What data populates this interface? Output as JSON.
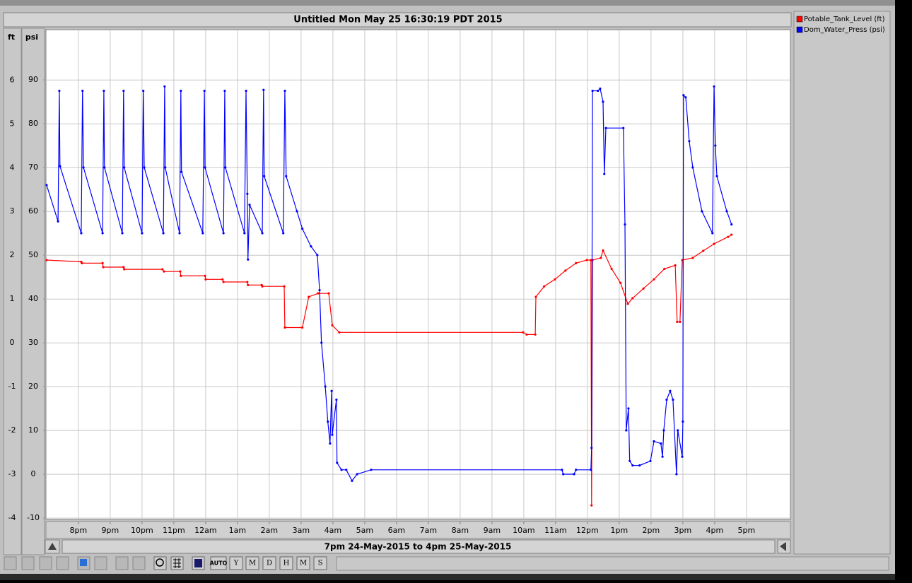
{
  "chart_data": {
    "type": "line",
    "title": "Untitled Mon May 25 16:30:19 PDT 2015",
    "xlabel": "7pm 24-May-2015 to 4pm 25-May-2015",
    "ylabel": "ft",
    "y2label": "psi",
    "xlim": [
      18.98,
      42.38
    ],
    "xticks": [
      {
        "value": 20,
        "label": "8pm"
      },
      {
        "value": 21,
        "label": "9pm"
      },
      {
        "value": 22,
        "label": "10pm"
      },
      {
        "value": 23,
        "label": "11pm"
      },
      {
        "value": 24,
        "label": "12am"
      },
      {
        "value": 25,
        "label": "1am"
      },
      {
        "value": 26,
        "label": "2am"
      },
      {
        "value": 27,
        "label": "3am"
      },
      {
        "value": 28,
        "label": "4am"
      },
      {
        "value": 29,
        "label": "5am"
      },
      {
        "value": 30,
        "label": "6am"
      },
      {
        "value": 31,
        "label": "7am"
      },
      {
        "value": 32,
        "label": "8am"
      },
      {
        "value": 33,
        "label": "9am"
      },
      {
        "value": 34,
        "label": "10am"
      },
      {
        "value": 35,
        "label": "11am"
      },
      {
        "value": 36,
        "label": "12pm"
      },
      {
        "value": 37,
        "label": "1pm"
      },
      {
        "value": 38,
        "label": "2pm"
      },
      {
        "value": 39,
        "label": "3pm"
      },
      {
        "value": 40,
        "label": "4pm"
      },
      {
        "value": 41,
        "label": "5pm"
      }
    ],
    "ylim": [
      -4.03,
      7.15
    ],
    "yticks": [
      -4,
      -3,
      -2,
      -1,
      0,
      1,
      2,
      3,
      4,
      5,
      6
    ],
    "y2lim": [
      -10.32,
      101.45
    ],
    "y2ticks": [
      -10,
      0,
      10,
      20,
      30,
      40,
      50,
      60,
      70,
      80,
      90
    ],
    "grid": true,
    "legend": "right",
    "series": [
      {
        "name": "Potable_Tank_Level (ft)",
        "color": "#ff0000",
        "x": [
          19.0,
          20.09,
          20.11,
          20.76,
          20.78,
          21.42,
          21.44,
          22.64,
          22.69,
          23.2,
          23.22,
          23.98,
          24.0,
          24.53,
          24.56,
          25.31,
          25.33,
          25.76,
          25.78,
          26.47,
          26.49,
          27.04,
          27.24,
          27.53,
          27.87,
          27.98,
          28.2,
          33.98,
          34.09,
          34.36,
          34.38,
          34.64,
          34.98,
          35.31,
          35.64,
          35.98,
          36.11,
          36.13,
          36.16,
          36.42,
          36.49,
          36.76,
          37.04,
          37.27,
          37.42,
          37.76,
          38.09,
          38.42,
          38.76,
          38.82,
          38.91,
          38.98,
          39.31,
          39.64,
          39.98,
          40.42,
          40.53
        ],
        "values": [
          1.89,
          1.85,
          1.82,
          1.82,
          1.73,
          1.73,
          1.68,
          1.68,
          1.63,
          1.63,
          1.53,
          1.53,
          1.45,
          1.45,
          1.39,
          1.39,
          1.32,
          1.32,
          1.29,
          1.29,
          0.35,
          0.35,
          1.05,
          1.13,
          1.13,
          0.4,
          0.24,
          0.24,
          0.19,
          0.19,
          1.05,
          1.29,
          1.45,
          1.65,
          1.82,
          1.89,
          1.89,
          -3.71,
          1.89,
          1.94,
          2.11,
          1.69,
          1.37,
          0.89,
          1.02,
          1.24,
          1.45,
          1.69,
          1.77,
          0.48,
          0.48,
          1.89,
          1.94,
          2.1,
          2.26,
          2.42,
          2.47
        ]
      },
      {
        "name": "Dom_Water_Press (psi)",
        "color": "#0000ff",
        "axis": "y2",
        "x": [
          19.0,
          19.36,
          19.4,
          19.42,
          20.09,
          20.13,
          20.16,
          20.76,
          20.8,
          20.82,
          21.38,
          21.42,
          21.44,
          22.0,
          22.04,
          22.07,
          22.67,
          22.71,
          22.73,
          23.18,
          23.22,
          23.24,
          23.91,
          23.96,
          23.98,
          24.56,
          24.6,
          24.62,
          25.22,
          25.27,
          25.31,
          25.33,
          25.38,
          25.78,
          25.82,
          25.84,
          26.44,
          26.49,
          26.53,
          26.87,
          27.04,
          27.31,
          27.51,
          27.58,
          27.64,
          27.76,
          27.84,
          27.91,
          27.96,
          27.98,
          28.11,
          28.13,
          28.27,
          28.42,
          28.6,
          28.76,
          29.2,
          35.2,
          35.24,
          35.58,
          35.64,
          36.11,
          36.13,
          36.16,
          36.33,
          36.4,
          36.49,
          36.53,
          36.58,
          37.13,
          37.18,
          37.22,
          37.29,
          37.33,
          37.42,
          37.64,
          37.98,
          38.09,
          38.31,
          38.36,
          38.4,
          38.49,
          38.6,
          38.69,
          38.8,
          38.84,
          38.98,
          39.0,
          39.02,
          39.09,
          39.2,
          39.31,
          39.6,
          39.93,
          39.98,
          40.02,
          40.07,
          40.38,
          40.53
        ],
        "values": [
          66,
          57.7,
          87.5,
          70.3,
          55,
          87.5,
          70,
          55,
          87.5,
          70,
          55,
          87.5,
          70,
          55,
          87.5,
          70,
          55,
          88.5,
          70,
          55,
          87.5,
          69,
          55,
          87.5,
          70,
          55,
          87.5,
          70,
          55,
          87.5,
          64,
          49,
          61.5,
          55,
          87.7,
          68,
          55,
          87.5,
          68,
          60,
          56,
          52,
          50,
          42,
          30,
          20,
          12,
          7,
          19,
          9,
          17,
          2.6,
          1,
          1,
          -1.5,
          0,
          1,
          1,
          0,
          0,
          1,
          1,
          6,
          87.5,
          87.5,
          88,
          85,
          68.5,
          79,
          79,
          57,
          10,
          15,
          3,
          2,
          2,
          3,
          7.5,
          7,
          4,
          10,
          17,
          19,
          17,
          0,
          10,
          4,
          12,
          86.5,
          86,
          76,
          70,
          60,
          55,
          88.5,
          75,
          68,
          60,
          57
        ]
      }
    ]
  },
  "toolbar": {
    "buttons": [
      "AUTO",
      "Y",
      "M",
      "D",
      "H",
      "M",
      "S"
    ]
  }
}
